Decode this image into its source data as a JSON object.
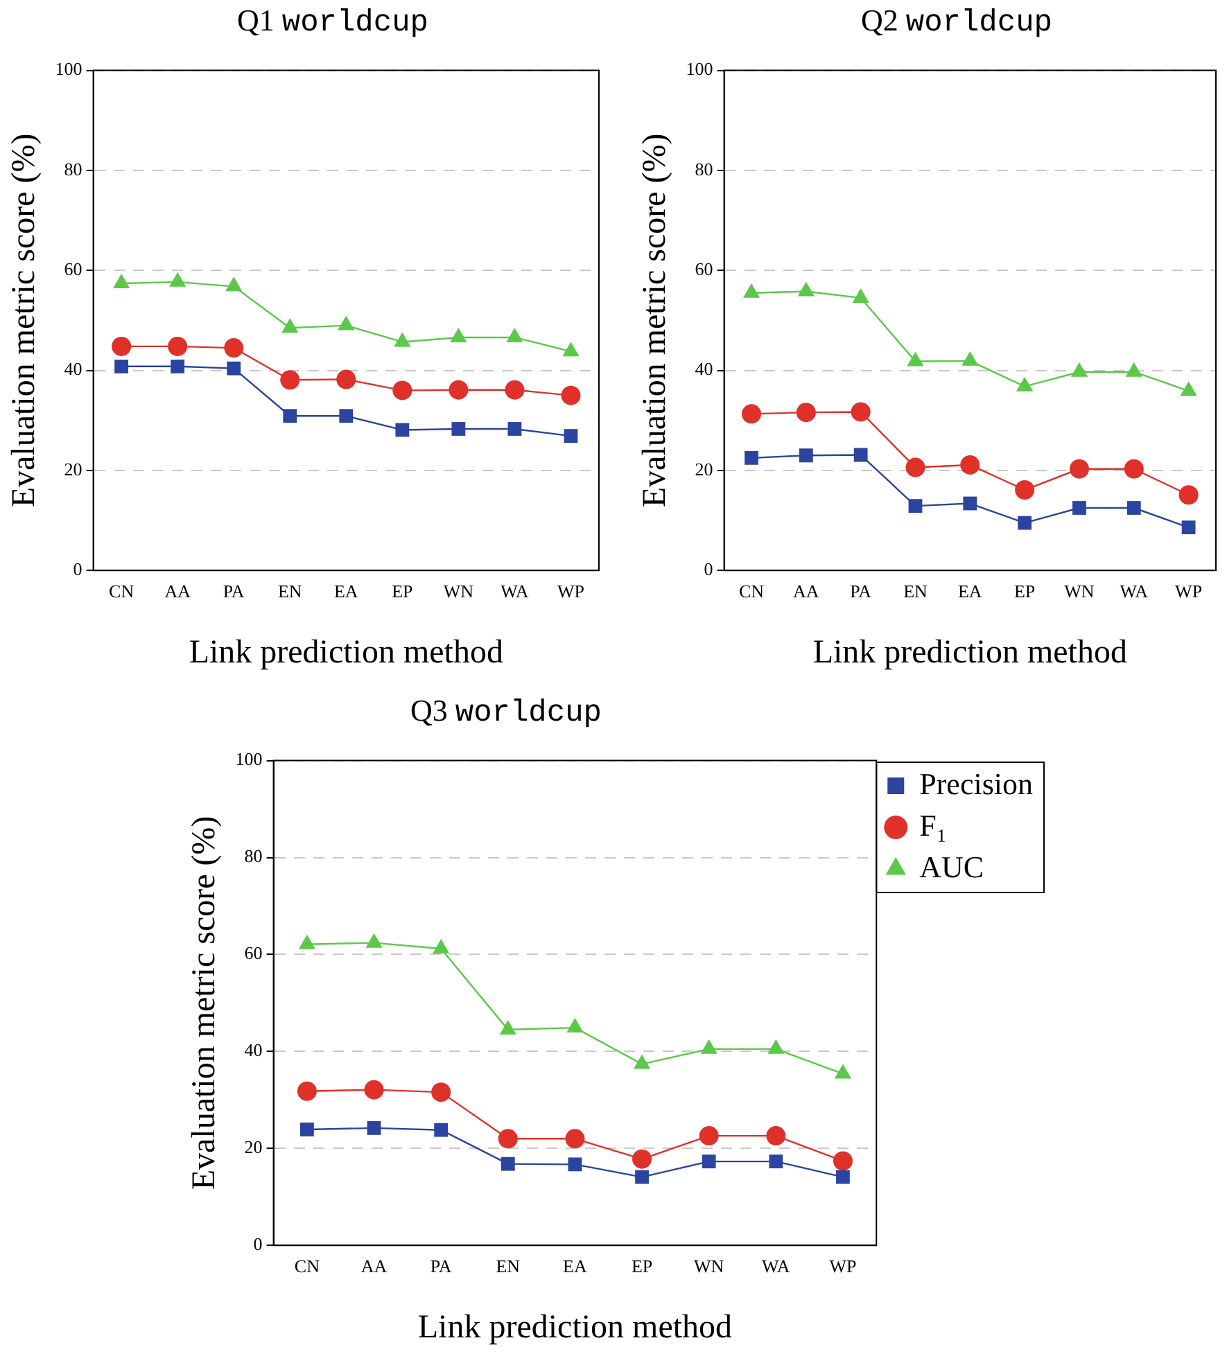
{
  "chart_data": [
    {
      "type": "line",
      "title": "Q1 worldcup",
      "xlabel": "Link prediction method",
      "ylabel": "Evaluation metric score (%)",
      "categories": [
        "CN",
        "AA",
        "PA",
        "EN",
        "EA",
        "EP",
        "WN",
        "WA",
        "WP"
      ],
      "ylim": [
        0,
        100
      ],
      "yticks": [
        0,
        20,
        40,
        60,
        80,
        100
      ],
      "grid": "y",
      "legend": false,
      "series": [
        {
          "color": "#2b44a0",
          "marker": "square",
          "values": [
            40.8,
            40.8,
            40.4,
            30.9,
            30.9,
            28.1,
            28.3,
            28.3,
            26.9
          ]
        },
        {
          "color": "#e0302a",
          "marker": "circle",
          "values": [
            44.8,
            44.8,
            44.5,
            38.1,
            38.2,
            36.0,
            36.1,
            36.1,
            35.0
          ]
        },
        {
          "color": "#5cc84a",
          "marker": "triangle",
          "values": [
            57.4,
            57.7,
            56.8,
            48.5,
            49.0,
            45.7,
            46.6,
            46.6,
            43.8
          ]
        }
      ]
    },
    {
      "type": "line",
      "title": "Q2 worldcup",
      "xlabel": "Link prediction method",
      "ylabel": "Evaluation metric score (%)",
      "categories": [
        "CN",
        "AA",
        "PA",
        "EN",
        "EA",
        "EP",
        "WN",
        "WA",
        "WP"
      ],
      "ylim": [
        0,
        100
      ],
      "yticks": [
        0,
        20,
        40,
        60,
        80,
        100
      ],
      "grid": "y",
      "legend": false,
      "series": [
        {
          "color": "#2b44a0",
          "marker": "square",
          "values": [
            22.5,
            23.0,
            23.1,
            12.9,
            13.4,
            9.5,
            12.5,
            12.5,
            8.6
          ]
        },
        {
          "color": "#e0302a",
          "marker": "circle",
          "values": [
            31.3,
            31.6,
            31.7,
            20.6,
            21.1,
            16.1,
            20.3,
            20.3,
            15.1
          ]
        },
        {
          "color": "#5cc84a",
          "marker": "triangle",
          "values": [
            55.5,
            55.8,
            54.5,
            41.8,
            41.9,
            36.8,
            39.7,
            39.7,
            35.9
          ]
        }
      ]
    },
    {
      "type": "line",
      "title": "Q3 worldcup",
      "xlabel": "Link prediction method",
      "ylabel": "Evaluation metric score (%)",
      "categories": [
        "CN",
        "AA",
        "PA",
        "EN",
        "EA",
        "EP",
        "WN",
        "WA",
        "WP"
      ],
      "ylim": [
        0,
        100
      ],
      "yticks": [
        0,
        20,
        40,
        60,
        80,
        100
      ],
      "grid": "y",
      "legend": "top right",
      "series": [
        {
          "name": "Precision",
          "color": "#2b44a0",
          "marker": "square",
          "values": [
            23.9,
            24.2,
            23.8,
            16.8,
            16.7,
            14.1,
            17.3,
            17.3,
            14.1
          ]
        },
        {
          "name": "F₁",
          "color": "#e0302a",
          "marker": "circle",
          "values": [
            31.8,
            32.1,
            31.6,
            22.0,
            22.0,
            17.8,
            22.6,
            22.6,
            17.4
          ]
        },
        {
          "name": "AUC",
          "color": "#5cc84a",
          "marker": "triangle",
          "values": [
            62.1,
            62.4,
            61.2,
            44.5,
            44.9,
            37.4,
            40.5,
            40.5,
            35.4
          ]
        }
      ]
    }
  ]
}
